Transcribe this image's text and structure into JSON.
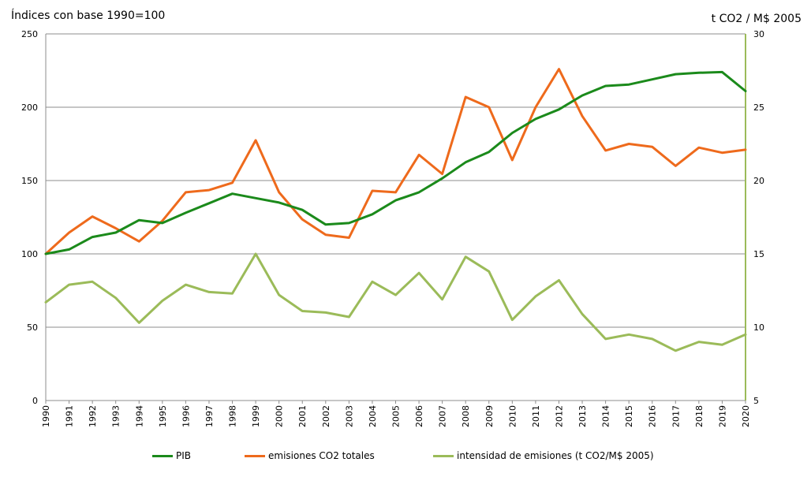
{
  "titles": {
    "left": "Índices con base 1990=100",
    "right": "t CO2 / M$ 2005"
  },
  "legend": [
    {
      "label": "PIB",
      "color": "#1b8a1b"
    },
    {
      "label": "emisiones CO2 totales",
      "color": "#ee6a1c"
    },
    {
      "label": "intensidad de emisiones (t CO2/M$ 2005)",
      "color": "#9bbb59"
    }
  ],
  "chart_data": {
    "type": "line",
    "x": [
      "1990",
      "1991",
      "1992",
      "1993",
      "1994",
      "1995",
      "1996",
      "1997",
      "1998",
      "1999",
      "2000",
      "2001",
      "2002",
      "2003",
      "2004",
      "2005",
      "2006",
      "2007",
      "2008",
      "2009",
      "2010",
      "2011",
      "2012",
      "2013",
      "2014",
      "2015",
      "2016",
      "2017",
      "2018",
      "2019",
      "2020"
    ],
    "y_left": {
      "min": 0,
      "max": 250,
      "ticks": [
        0,
        50,
        100,
        150,
        200,
        250
      ]
    },
    "y_right": {
      "min": 5,
      "max": 30,
      "ticks": [
        5,
        10,
        15,
        20,
        25,
        30
      ]
    },
    "grid": true,
    "legend_position": "bottom",
    "series": [
      {
        "name": "PIB",
        "axis": "left",
        "color": "#1b8a1b",
        "values": [
          100,
          103,
          111.5,
          114.5,
          123,
          121,
          128,
          134.5,
          141,
          138,
          135,
          130,
          120,
          121,
          127,
          136.5,
          142,
          151.5,
          162.5,
          169.5,
          182.5,
          192,
          198.5,
          208,
          214.5,
          215.5,
          219,
          222.5,
          223.5,
          224,
          211
        ]
      },
      {
        "name": "emisiones CO2 totales",
        "axis": "left",
        "color": "#ee6a1c",
        "values": [
          100,
          114.5,
          125.5,
          117.5,
          108.5,
          122.5,
          142,
          143.5,
          148.5,
          177.5,
          142,
          123.5,
          113,
          111,
          143,
          142,
          167.5,
          154.5,
          207,
          200,
          164,
          200,
          226,
          194,
          170.5,
          175,
          173,
          160,
          172.5,
          169,
          171
        ]
      },
      {
        "name": "intensidad de emisiones (t CO2/M$ 2005)",
        "axis": "right",
        "color": "#9bbb59",
        "values": [
          11.7,
          12.9,
          13.1,
          12,
          10.3,
          11.8,
          12.9,
          12.4,
          12.3,
          15,
          12.2,
          11.1,
          11,
          10.7,
          13.1,
          12.2,
          13.7,
          11.9,
          14.8,
          13.8,
          10.5,
          12.1,
          13.2,
          10.9,
          9.2,
          9.5,
          9.2,
          8.4,
          9,
          8.8,
          9.5
        ]
      }
    ]
  }
}
